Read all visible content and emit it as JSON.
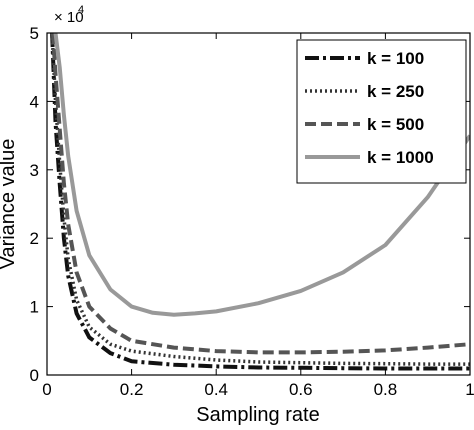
{
  "chart_data": {
    "type": "line",
    "title": "",
    "xlabel": "Sampling rate",
    "ylabel": "Variance value",
    "xlim": [
      0,
      1
    ],
    "ylim": [
      0,
      50000
    ],
    "x_ticks": [
      0,
      0.2,
      0.4,
      0.6,
      0.8,
      1
    ],
    "x_tick_labels": [
      "0",
      "0.2",
      "0.4",
      "0.6",
      "0.8",
      "1"
    ],
    "y_ticks": [
      0,
      10000,
      20000,
      30000,
      40000,
      50000
    ],
    "y_tick_labels": [
      "0",
      "1",
      "2",
      "3",
      "4",
      "5"
    ],
    "y_multiplier_base": "× 10",
    "y_multiplier_exp": "4",
    "grid": false,
    "legend_position": "top-right",
    "series": [
      {
        "name": "k = 100",
        "style": "dashdot",
        "color": "#111111",
        "points": [
          [
            0.012,
            50000
          ],
          [
            0.02,
            37000
          ],
          [
            0.03,
            28000
          ],
          [
            0.04,
            20000
          ],
          [
            0.05,
            14500
          ],
          [
            0.07,
            9000
          ],
          [
            0.1,
            5500
          ],
          [
            0.15,
            3200
          ],
          [
            0.2,
            2000
          ],
          [
            0.3,
            1500
          ],
          [
            0.4,
            1250
          ],
          [
            0.5,
            1100
          ],
          [
            0.6,
            1050
          ],
          [
            0.7,
            1000
          ],
          [
            0.8,
            950
          ],
          [
            0.9,
            950
          ],
          [
            1.0,
            950
          ]
        ]
      },
      {
        "name": "k = 250",
        "style": "dotted",
        "color": "#333333",
        "points": [
          [
            0.012,
            50000
          ],
          [
            0.02,
            40000
          ],
          [
            0.03,
            31000
          ],
          [
            0.04,
            23000
          ],
          [
            0.05,
            17000
          ],
          [
            0.07,
            11000
          ],
          [
            0.1,
            7000
          ],
          [
            0.15,
            4500
          ],
          [
            0.2,
            3500
          ],
          [
            0.3,
            2700
          ],
          [
            0.4,
            2200
          ],
          [
            0.5,
            1900
          ],
          [
            0.6,
            1800
          ],
          [
            0.7,
            1700
          ],
          [
            0.8,
            1650
          ],
          [
            0.9,
            1600
          ],
          [
            1.0,
            1600
          ]
        ]
      },
      {
        "name": "k = 500",
        "style": "dashed",
        "color": "#555555",
        "points": [
          [
            0.014,
            50000
          ],
          [
            0.02,
            44000
          ],
          [
            0.03,
            36000
          ],
          [
            0.04,
            28000
          ],
          [
            0.05,
            22000
          ],
          [
            0.07,
            15000
          ],
          [
            0.1,
            10000
          ],
          [
            0.15,
            6800
          ],
          [
            0.2,
            5000
          ],
          [
            0.3,
            4000
          ],
          [
            0.4,
            3500
          ],
          [
            0.5,
            3300
          ],
          [
            0.6,
            3300
          ],
          [
            0.7,
            3400
          ],
          [
            0.8,
            3600
          ],
          [
            0.9,
            4000
          ],
          [
            1.0,
            4500
          ]
        ]
      },
      {
        "name": "k = 1000",
        "style": "solid",
        "color": "#999999",
        "points": [
          [
            0.02,
            50000
          ],
          [
            0.03,
            45000
          ],
          [
            0.04,
            38000
          ],
          [
            0.05,
            32000
          ],
          [
            0.07,
            24000
          ],
          [
            0.1,
            17500
          ],
          [
            0.15,
            12500
          ],
          [
            0.2,
            10000
          ],
          [
            0.25,
            9100
          ],
          [
            0.3,
            8800
          ],
          [
            0.35,
            9000
          ],
          [
            0.4,
            9300
          ],
          [
            0.5,
            10500
          ],
          [
            0.6,
            12300
          ],
          [
            0.7,
            15000
          ],
          [
            0.8,
            19000
          ],
          [
            0.9,
            26000
          ],
          [
            1.0,
            35000
          ]
        ]
      }
    ]
  }
}
